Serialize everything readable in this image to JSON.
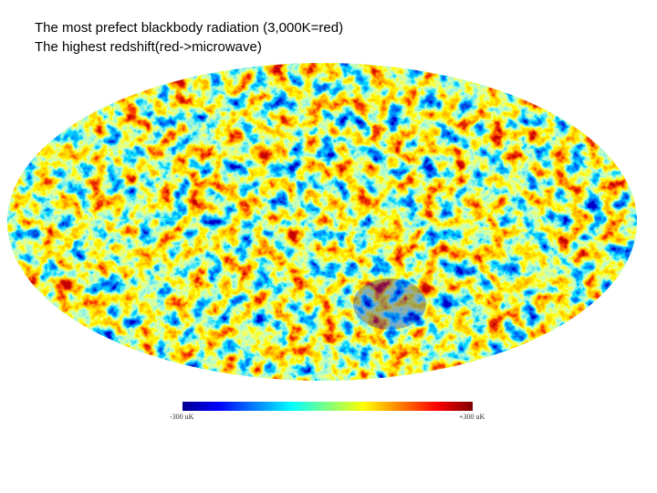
{
  "caption": {
    "line1": "The most prefect blackbody radiation (3,000K=red)",
    "line2": "The highest redshift(red->microwave)"
  },
  "map": {
    "subject": "cosmic microwave background all-sky temperature map",
    "projection": "mollweide-ellipse",
    "colormap": [
      "#00008f",
      "#0000ff",
      "#007fff",
      "#00ffff",
      "#7fff7f",
      "#ffff00",
      "#ff7f00",
      "#ff0000",
      "#7f0000"
    ]
  },
  "colorbar": {
    "min_label": "-300 uK",
    "max_label": "+300 uK",
    "min_value": -300,
    "max_value": 300
  }
}
